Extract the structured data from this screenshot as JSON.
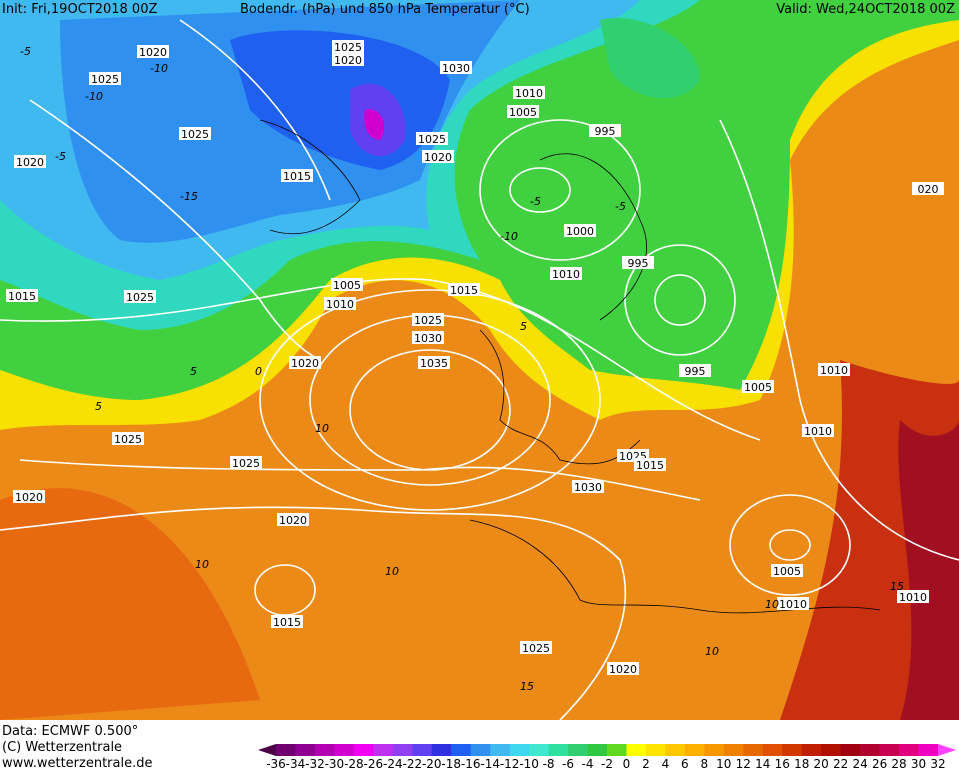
{
  "header": {
    "init": "Init: Fri,19OCT2018 00Z",
    "title": "Bodendr. (hPa) und 850 hPa Temperatur (°C)",
    "valid": "Valid: Wed,24OCT2018 00Z"
  },
  "isobar_labels": [
    "1020",
    "1025",
    "1025",
    "1020",
    "1030",
    "1010",
    "1005",
    "995",
    "1025",
    "1025",
    "1020",
    "1020",
    "1015",
    "020",
    "1000",
    "995",
    "1010",
    "1005",
    "1015",
    "1010",
    "1015",
    "1025",
    "1025",
    "1030",
    "1020",
    "1035",
    "995",
    "1010",
    "1005",
    "1025",
    "1010",
    "1025",
    "1025",
    "1015",
    "1030",
    "1020",
    "1020",
    "1005",
    "1010",
    "1010",
    "1015",
    "1025",
    "1020"
  ],
  "temperature_labels": [
    "-10",
    "-5",
    "-15",
    "-5",
    "-10",
    "5",
    "-5",
    "0",
    "5",
    "10",
    "10",
    "10",
    "10",
    "15",
    "15",
    "10",
    "-10",
    "-5",
    "5"
  ],
  "footer": {
    "data": "Data: ECMWF   0.500°",
    "copyright": "(C) Wetterzentrale",
    "url": "www.wetterzentrale.de"
  },
  "legend": {
    "labels": [
      -36,
      -34,
      -32,
      -30,
      -28,
      -26,
      -24,
      -22,
      -20,
      -18,
      -16,
      -14,
      -12,
      -10,
      -8,
      -6,
      -4,
      -2,
      0,
      2,
      4,
      6,
      8,
      10,
      12,
      14,
      16,
      18,
      20,
      22,
      24,
      26,
      28,
      30,
      32
    ],
    "colors": [
      "#4b0048",
      "#700070",
      "#900090",
      "#b000b0",
      "#d000d0",
      "#f000f0",
      "#c030f0",
      "#9040f0",
      "#6040f0",
      "#3030e0",
      "#2060f0",
      "#3090f0",
      "#40b8f0",
      "#40d8f0",
      "#40e8d0",
      "#30e0a0",
      "#30d070",
      "#30c840",
      "#60d820",
      "#ffff00",
      "#ffe400",
      "#ffc800",
      "#ffb000",
      "#f89800",
      "#f08000",
      "#e86800",
      "#e05000",
      "#d03800",
      "#c02000",
      "#b01000",
      "#a00010",
      "#b00030",
      "#c80050",
      "#e00080",
      "#f000c0",
      "#ff40ff"
    ]
  }
}
